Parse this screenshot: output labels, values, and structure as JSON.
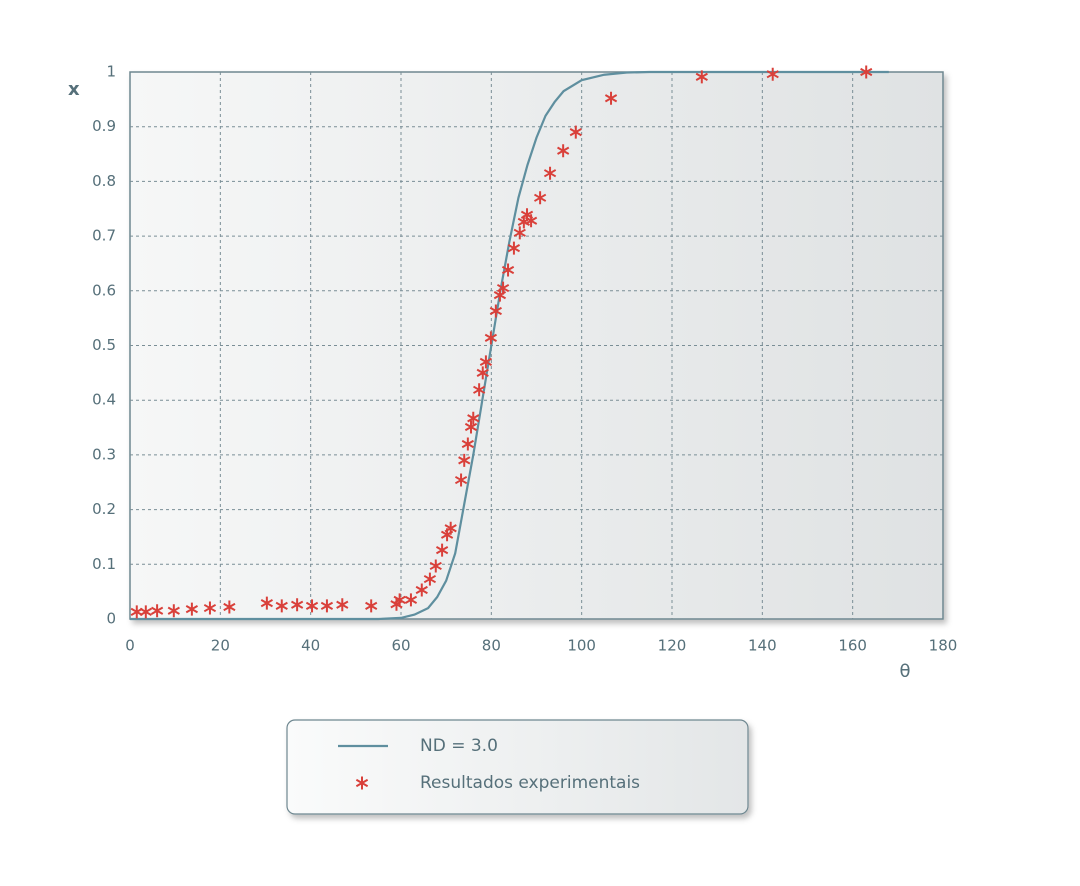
{
  "chart_data": {
    "type": "line-scatter",
    "xlabel": "θ",
    "ylabel": "x",
    "xlim": [
      0,
      180
    ],
    "ylim": [
      0,
      1
    ],
    "xticks": [
      0,
      20,
      40,
      60,
      80,
      100,
      120,
      140,
      160,
      180
    ],
    "yticks": [
      0,
      0.1,
      0.2,
      0.3,
      0.4,
      0.5,
      0.6,
      0.7,
      0.8,
      0.9,
      1
    ],
    "grid": true,
    "series": [
      {
        "name": "ND = 3.0",
        "type": "line",
        "color": "#5f8f9f",
        "x": [
          0,
          20,
          40,
          55,
          60,
          63,
          66,
          68,
          70,
          72,
          74,
          76,
          78,
          80,
          82,
          84,
          86,
          88,
          90,
          92,
          94,
          96,
          100,
          105,
          110,
          115,
          120,
          140,
          168
        ],
        "values": [
          0,
          0,
          0,
          0,
          0.002,
          0.008,
          0.02,
          0.04,
          0.07,
          0.12,
          0.21,
          0.3,
          0.4,
          0.5,
          0.6,
          0.69,
          0.77,
          0.83,
          0.88,
          0.92,
          0.945,
          0.965,
          0.985,
          0.995,
          0.999,
          1,
          1,
          1,
          1
        ]
      },
      {
        "name": "Resultados experimentais",
        "type": "scatter",
        "color": "#d9403a",
        "x": [
          1.5,
          3.5,
          6,
          9.7,
          13.7,
          17.7,
          22,
          30.3,
          33.6,
          37,
          40.3,
          43.6,
          47,
          53.4,
          59,
          59.7,
          62.2,
          64.6,
          66.4,
          67.7,
          69.1,
          70.2,
          71,
          73.3,
          74,
          74.8,
          75.5,
          76,
          77.3,
          78.1,
          78.8,
          79.9,
          81,
          81.9,
          82.6,
          83.7,
          85,
          86.3,
          87.2,
          87.9,
          88.8,
          90.8,
          93,
          95.9,
          98.7,
          106.5,
          126.6,
          142.3,
          163
        ],
        "values": [
          0.013,
          0.013,
          0.015,
          0.015,
          0.018,
          0.02,
          0.022,
          0.029,
          0.024,
          0.026,
          0.024,
          0.024,
          0.026,
          0.024,
          0.027,
          0.035,
          0.035,
          0.053,
          0.073,
          0.097,
          0.126,
          0.154,
          0.166,
          0.254,
          0.29,
          0.32,
          0.351,
          0.367,
          0.419,
          0.45,
          0.47,
          0.514,
          0.563,
          0.592,
          0.605,
          0.638,
          0.678,
          0.706,
          0.726,
          0.739,
          0.728,
          0.77,
          0.815,
          0.856,
          0.89,
          0.952,
          0.991,
          0.996,
          1.0
        ]
      }
    ]
  }
}
